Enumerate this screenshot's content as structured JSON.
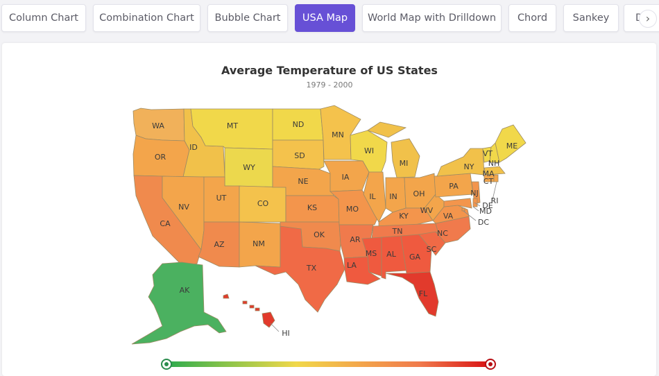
{
  "tabs": [
    {
      "label": "Column Chart",
      "active": false
    },
    {
      "label": "Combination Chart",
      "active": false
    },
    {
      "label": "Bubble Chart",
      "active": false
    },
    {
      "label": "USA Map",
      "active": true
    },
    {
      "label": "World Map with Drilldown",
      "active": false
    },
    {
      "label": "Chord",
      "active": false
    },
    {
      "label": "Sankey",
      "active": false
    },
    {
      "label": "D",
      "active": false
    }
  ],
  "scroll_icon": "chevron-right-icon",
  "map": {
    "title": "Average Temperature of US States",
    "subtitle": "1979 - 2000",
    "colors": {
      "cold": "#2bab4e",
      "mild": "#f1d84a",
      "warm": "#f3a54b",
      "hot": "#f07a4c",
      "hottest": "#d80f12"
    },
    "states": {
      "WA": "WA",
      "OR": "OR",
      "CA": "CA",
      "ID": "ID",
      "NV": "NV",
      "MT": "MT",
      "WY": "WY",
      "UT": "UT",
      "AZ": "AZ",
      "CO": "CO",
      "NM": "NM",
      "ND": "ND",
      "SD": "SD",
      "NE": "NE",
      "KS": "KS",
      "OK": "OK",
      "TX": "TX",
      "MN": "MN",
      "IA": "IA",
      "MO": "MO",
      "AR": "AR",
      "LA": "LA",
      "WI": "WI",
      "IL": "IL",
      "MI": "MI",
      "IN": "IN",
      "OH": "OH",
      "KY": "KY",
      "TN": "TN",
      "MS": "MS",
      "AL": "AL",
      "GA": "GA",
      "FL": "FL",
      "SC": "SC",
      "NC": "NC",
      "VA": "VA",
      "WV": "WV",
      "PA": "PA",
      "NY": "NY",
      "VT": "VT",
      "NH": "NH",
      "ME": "ME",
      "MA": "MA",
      "CT": "CT",
      "RI": "RI",
      "NJ": "NJ",
      "DE": "DE",
      "MD": "MD",
      "DC": "DC",
      "AK": "AK",
      "HI": "HI"
    }
  },
  "legend": {
    "gradient_colors": [
      "#2bab4e",
      "#88c34a",
      "#f1d84a",
      "#f3a54b",
      "#f07a4c",
      "#d80f12"
    ],
    "left_handle_icon": "slider-handle-icon",
    "right_handle_icon": "slider-handle-icon"
  }
}
